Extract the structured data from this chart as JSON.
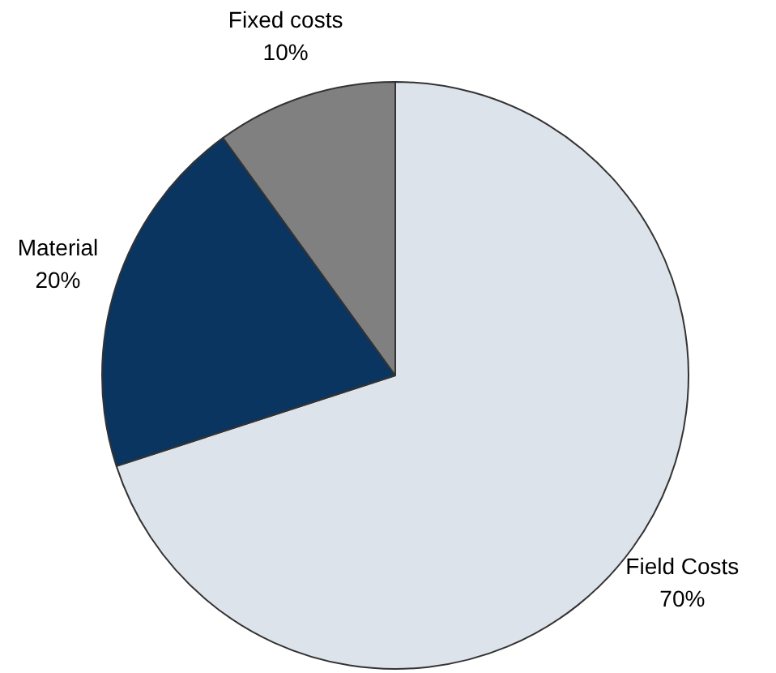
{
  "chart_data": {
    "type": "pie",
    "categories": [
      "Field Costs",
      "Material",
      "Fixed costs"
    ],
    "values": [
      70,
      20,
      10
    ],
    "colors": [
      "#dde3ea",
      "#0b3561",
      "#808080"
    ],
    "value_labels": [
      "70%",
      "20%",
      "10%"
    ],
    "legend": false
  }
}
